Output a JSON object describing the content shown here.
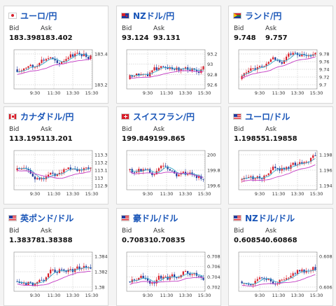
{
  "cards": [
    {
      "pair": "ユーロ/円",
      "flag": "jp",
      "bid_label": "Bid",
      "ask_label": "Ask",
      "bid": "183.398",
      "ask": "183.402",
      "y_ticks": [
        "183.4",
        "183.2"
      ],
      "x_ticks": [
        "9:30",
        "11:30",
        "13:30",
        "15:30"
      ],
      "trend": "flat"
    },
    {
      "pair": "NZドル/円",
      "flag": "nz",
      "bid_label": "Bid",
      "ask_label": "Ask",
      "bid": "93.124",
      "ask": "93.131",
      "y_ticks": [
        "93.2",
        "93",
        "92.8",
        "92.6"
      ],
      "x_ticks": [
        "9:30",
        "11:30",
        "13:30",
        "15:30"
      ],
      "trend": "up"
    },
    {
      "pair": "ランド/円",
      "flag": "za",
      "bid_label": "Bid",
      "ask_label": "Ask",
      "bid": "9.748",
      "ask": "9.757",
      "y_ticks": [
        "9.78",
        "9.76",
        "9.74",
        "9.72",
        "9.7"
      ],
      "x_ticks": [
        "9:30",
        "11:30",
        "13:30",
        "15:30"
      ],
      "trend": "up"
    },
    {
      "pair": "カナダドル/円",
      "flag": "ca",
      "bid_label": "Bid",
      "ask_label": "Ask",
      "bid": "113.195",
      "ask": "113.201",
      "y_ticks": [
        "113.3",
        "113.2",
        "113.1",
        "113",
        "112.9"
      ],
      "x_ticks": [
        "9:30",
        "11:30",
        "13:30",
        "15:30"
      ],
      "trend": "flat"
    },
    {
      "pair": "スイスフラン/円",
      "flag": "ch",
      "bid_label": "Bid",
      "ask_label": "Ask",
      "bid": "199.849",
      "ask": "199.865",
      "y_ticks": [
        "200",
        "199.8",
        "199.6"
      ],
      "x_ticks": [
        "9:30",
        "11:30",
        "13:30",
        "15:30"
      ],
      "trend": "flat"
    },
    {
      "pair": "ユーロ/ドル",
      "flag": "us",
      "bid_label": "Bid",
      "ask_label": "Ask",
      "bid": "1.19855",
      "ask": "1.19858",
      "y_ticks": [
        "1.198",
        "1.196",
        "1.194"
      ],
      "x_ticks": [
        "9:30",
        "11:30",
        "13:30",
        "15:30"
      ],
      "trend": "up"
    },
    {
      "pair": "英ポンド/ドル",
      "flag": "us",
      "bid_label": "Bid",
      "ask_label": "Ask",
      "bid": "1.38378",
      "ask": "1.38388",
      "y_ticks": [
        "1.384",
        "1.382",
        "1.38"
      ],
      "x_ticks": [
        "9:30",
        "11:30",
        "13:30",
        "15:30"
      ],
      "trend": "up"
    },
    {
      "pair": "豪ドル/ドル",
      "flag": "us",
      "bid_label": "Bid",
      "ask_label": "Ask",
      "bid": "0.70831",
      "ask": "0.70835",
      "y_ticks": [
        "0.708",
        "0.706",
        "0.704",
        "0.702"
      ],
      "x_ticks": [
        "9:30",
        "11:30",
        "13:30",
        "15:30"
      ],
      "trend": "up"
    },
    {
      "pair": "NZドル/ドル",
      "flag": "us",
      "bid_label": "Bid",
      "ask_label": "Ask",
      "bid": "0.60854",
      "ask": "0.60868",
      "y_ticks": [
        "0.608",
        "0.606"
      ],
      "x_ticks": [
        "9:30",
        "11:30",
        "13:30",
        "15:30"
      ],
      "trend": "up"
    }
  ],
  "colors": {
    "title": "#1a56b8",
    "up_candle": "#d81e2a",
    "down_candle": "#1f3a9c",
    "ma_short": "#39a9c9",
    "ma_long": "#c43bc4",
    "grid": "#bdbdbd"
  }
}
